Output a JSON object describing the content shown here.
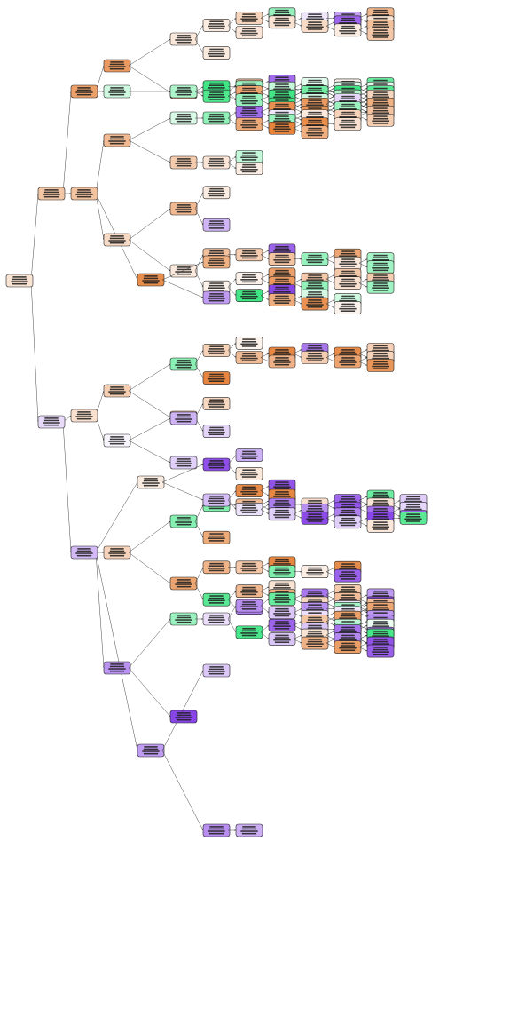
{
  "diagram": {
    "type": "decision-tree",
    "class_colors": {
      "class_0": "#e58139",
      "class_1": "#39e581",
      "class_2": "#8139e5"
    },
    "nodes": [
      {
        "id": "n0",
        "depth": 0,
        "cls": 0,
        "shade": 0.22,
        "parent": null
      },
      {
        "id": "n1",
        "depth": 1,
        "cls": 0,
        "shade": 0.45,
        "parent": "n0"
      },
      {
        "id": "n2",
        "depth": 1,
        "cls": 2,
        "shade": 0.18,
        "parent": "n0"
      },
      {
        "id": "n3",
        "depth": 2,
        "cls": 0,
        "shade": 0.75,
        "parent": "n1"
      },
      {
        "id": "n4",
        "depth": 2,
        "cls": 0,
        "shade": 0.48,
        "parent": "n1"
      },
      {
        "id": "n5",
        "depth": 2,
        "cls": 0,
        "shade": 0.25,
        "parent": "n2"
      },
      {
        "id": "n6",
        "depth": 2,
        "cls": 2,
        "shade": 0.35,
        "parent": "n2"
      },
      {
        "id": "n7",
        "depth": 3,
        "cls": 0,
        "shade": 0.8,
        "parent": "n3"
      },
      {
        "id": "n8",
        "depth": 3,
        "cls": 1,
        "shade": 0.25,
        "parent": "n3"
      },
      {
        "id": "n9",
        "depth": 3,
        "cls": 0,
        "shade": 0.55,
        "parent": "n4"
      },
      {
        "id": "n10",
        "depth": 3,
        "cls": 0,
        "shade": 0.3,
        "parent": "n4"
      },
      {
        "id": "n11",
        "depth": 3,
        "cls": 0,
        "shade": 0.9,
        "parent": "n4"
      },
      {
        "id": "n12",
        "depth": 3,
        "cls": 0,
        "shade": 0.4,
        "parent": "n5"
      },
      {
        "id": "n13",
        "depth": 3,
        "cls": 2,
        "shade": 0.05,
        "parent": "n5"
      },
      {
        "id": "n14",
        "depth": 3,
        "cls": 0,
        "shade": 0.35,
        "parent": "n6"
      },
      {
        "id": "n15",
        "depth": 3,
        "cls": 0,
        "shade": 0.15,
        "parent": "n6"
      },
      {
        "id": "n16",
        "depth": 3,
        "cls": 2,
        "shade": 0.55,
        "parent": "n6"
      },
      {
        "id": "n17",
        "depth": 3,
        "cls": 2,
        "shade": 0.5,
        "parent": "n6"
      }
    ]
  }
}
